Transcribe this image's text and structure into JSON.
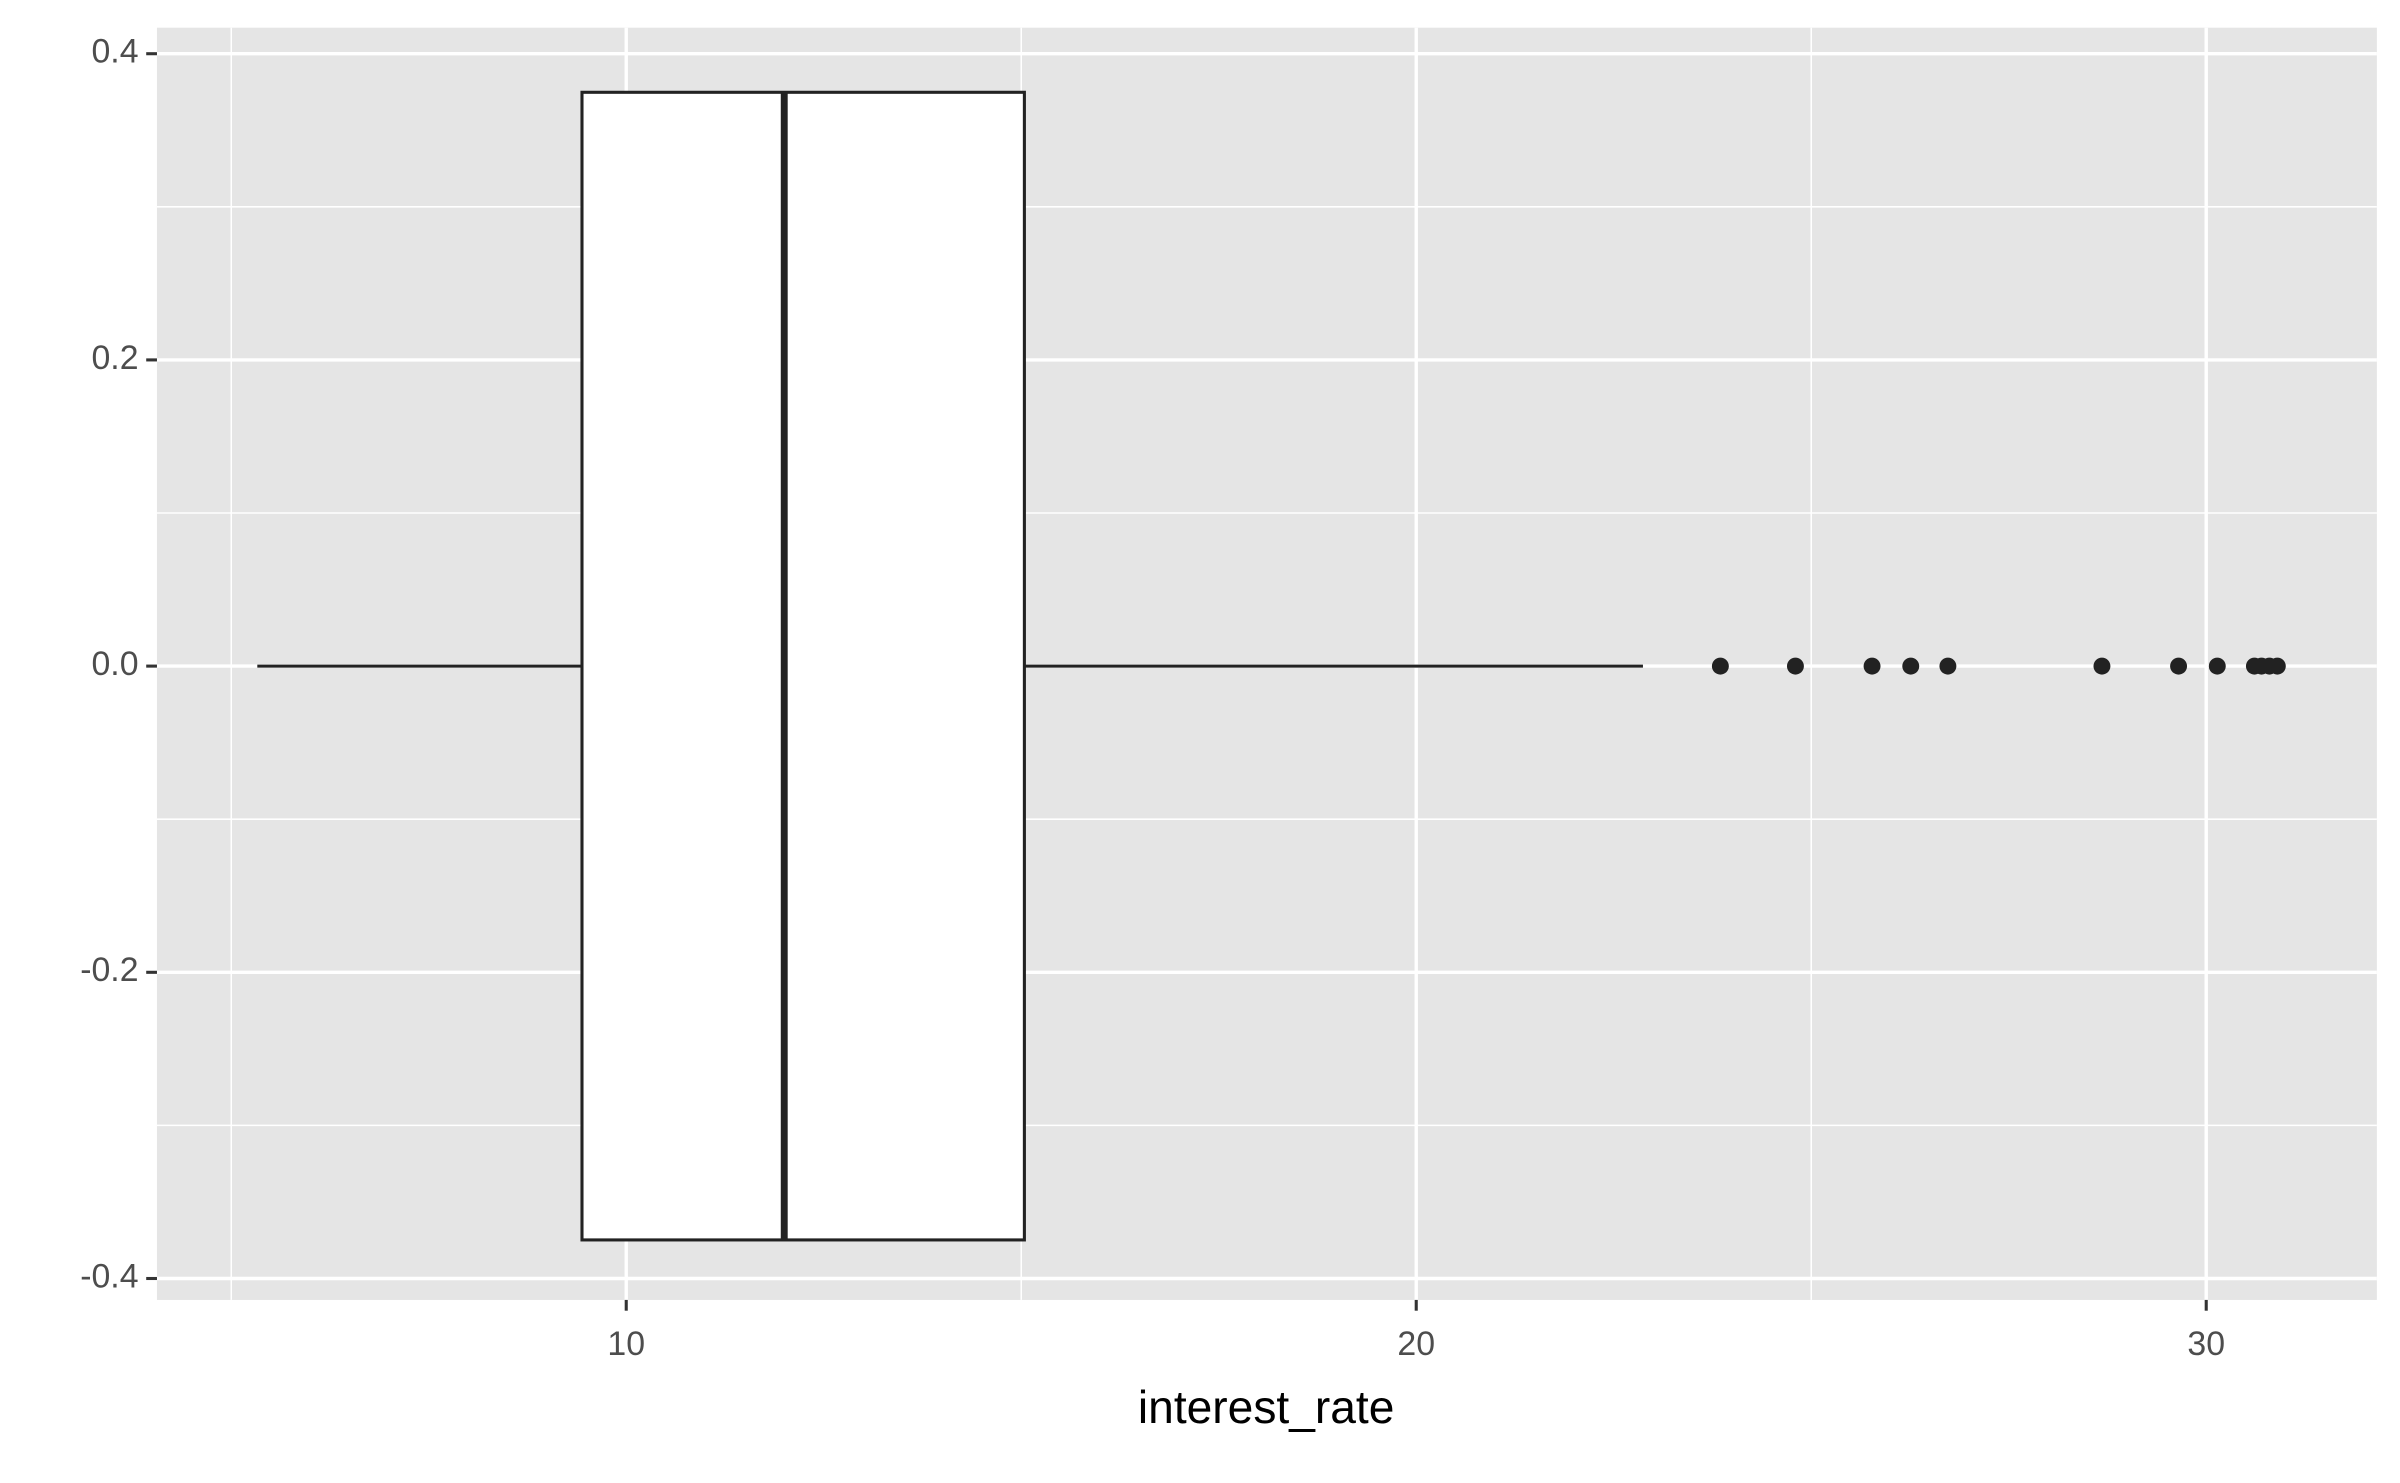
{
  "chart_data": {
    "type": "boxplot",
    "x_label": "interest_rate",
    "orientation": "horizontal",
    "boxes": [
      {
        "y": 0,
        "whisker_low": 5.33,
        "q1": 9.44,
        "median": 12.0,
        "q3": 15.04,
        "whisker_high": 22.87,
        "outliers": [
          23.85,
          24.8,
          25.77,
          26.26,
          26.73,
          28.68,
          29.65,
          30.14,
          30.61,
          30.7,
          30.8,
          30.9
        ]
      }
    ],
    "xlim": [
      4.06,
      32.16
    ],
    "ylim": [
      -0.414,
      0.417
    ],
    "xticks": [
      10,
      20,
      30
    ],
    "yticks": [
      -0.4,
      -0.2,
      {
        "value": 0,
        "label": "0.0"
      },
      0.2,
      0.4
    ],
    "x_minor_grid": [
      5,
      15,
      25
    ],
    "y_minor_grid": [
      -0.3,
      -0.1,
      0.1,
      0.3
    ],
    "grid": true,
    "box_color": "#ffffff",
    "line_color": "#222222",
    "panel_color": "#e5e5e5"
  }
}
